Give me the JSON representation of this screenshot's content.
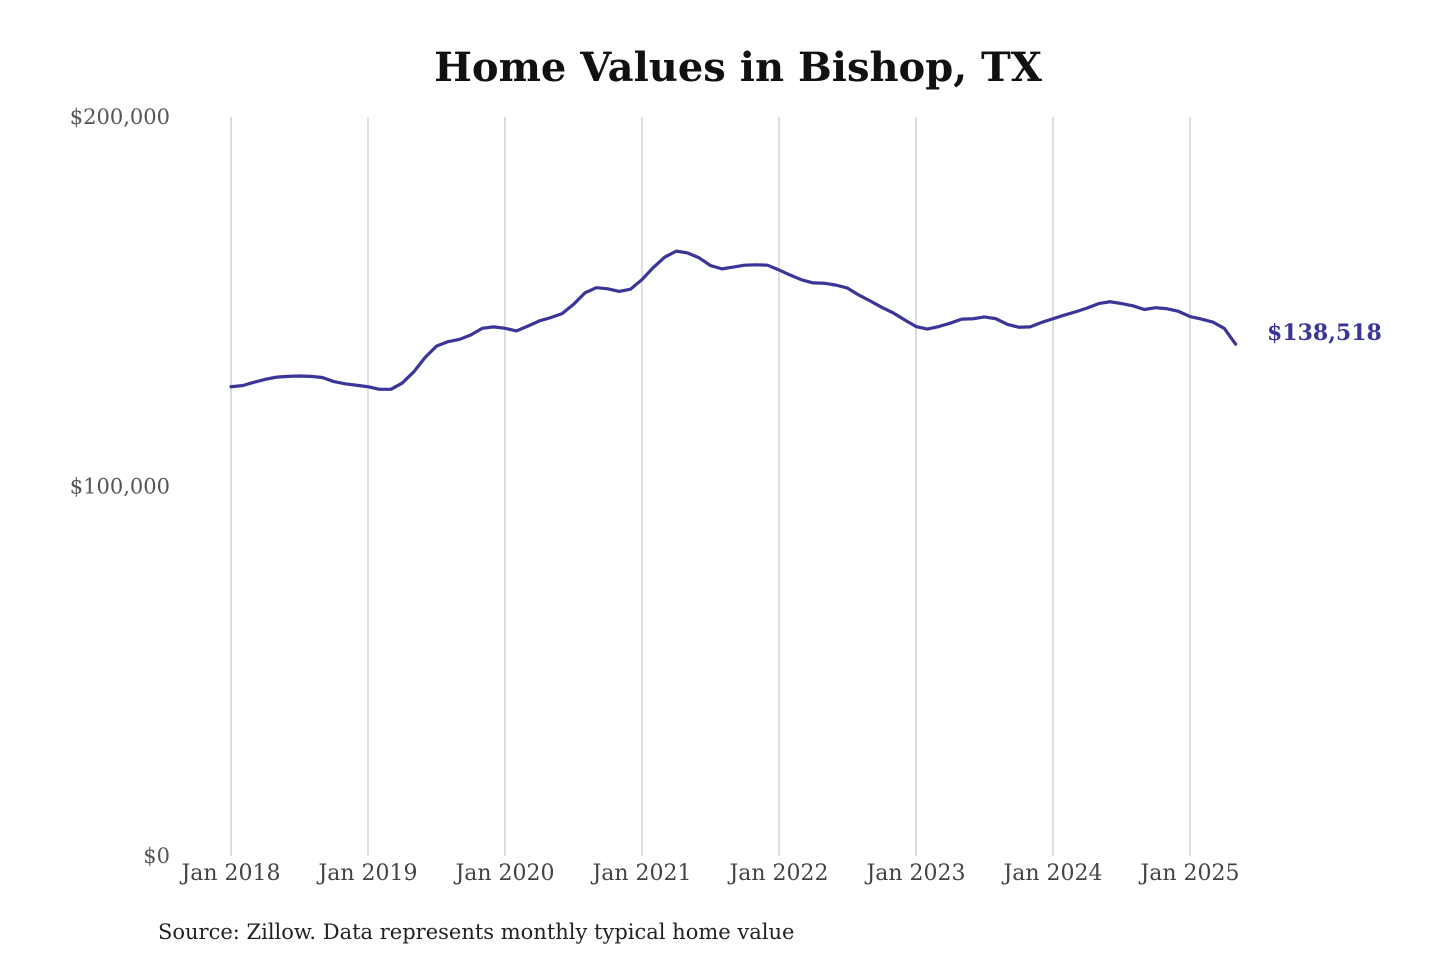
{
  "colors": {
    "line": "#3a3596",
    "grid": "#c8c8c8",
    "title": "#111111",
    "tick_text": "#555555",
    "background": "#ffffff"
  },
  "chart_data": {
    "type": "line",
    "title": "Home Values in Bishop, TX",
    "xlabel": "",
    "ylabel": "",
    "ylim": [
      0,
      200000
    ],
    "grid": "vertical-at-x-ticks",
    "y_ticks": [
      {
        "value": 0,
        "label": "$0"
      },
      {
        "value": 100000,
        "label": "$100,000"
      },
      {
        "value": 200000,
        "label": "$200,000"
      }
    ],
    "x_ticks": [
      {
        "date": "2018-01",
        "label": "Jan 2018"
      },
      {
        "date": "2019-01",
        "label": "Jan 2019"
      },
      {
        "date": "2020-01",
        "label": "Jan 2020"
      },
      {
        "date": "2021-01",
        "label": "Jan 2021"
      },
      {
        "date": "2022-01",
        "label": "Jan 2022"
      },
      {
        "date": "2023-01",
        "label": "Jan 2023"
      },
      {
        "date": "2024-01",
        "label": "Jan 2024"
      },
      {
        "date": "2025-01",
        "label": "Jan 2025"
      }
    ],
    "series": [
      {
        "x": [
          "2018-01",
          "2018-02",
          "2018-03",
          "2018-04",
          "2018-05",
          "2018-06",
          "2018-07",
          "2018-08",
          "2018-09",
          "2018-10",
          "2018-11",
          "2018-12",
          "2019-01",
          "2019-02",
          "2019-03",
          "2019-04",
          "2019-05",
          "2019-06",
          "2019-07",
          "2019-08",
          "2019-09",
          "2019-10",
          "2019-11",
          "2019-12",
          "2020-01",
          "2020-02",
          "2020-03",
          "2020-04",
          "2020-05",
          "2020-06",
          "2020-07",
          "2020-08",
          "2020-09",
          "2020-10",
          "2020-11",
          "2020-12",
          "2021-01",
          "2021-02",
          "2021-03",
          "2021-04",
          "2021-05",
          "2021-06",
          "2021-07",
          "2021-08",
          "2021-09",
          "2021-10",
          "2021-11",
          "2021-12",
          "2022-01",
          "2022-02",
          "2022-03",
          "2022-04",
          "2022-05",
          "2022-06",
          "2022-07",
          "2022-08",
          "2022-09",
          "2022-10",
          "2022-11",
          "2022-12",
          "2023-01",
          "2023-02",
          "2023-03",
          "2023-04",
          "2023-05",
          "2023-06",
          "2023-07",
          "2023-08",
          "2023-09",
          "2023-10",
          "2023-11",
          "2023-12",
          "2024-01",
          "2024-02",
          "2024-03",
          "2024-04",
          "2024-05",
          "2024-06",
          "2024-07",
          "2024-08",
          "2024-09",
          "2024-10",
          "2024-11",
          "2024-12",
          "2025-01",
          "2025-02",
          "2025-03",
          "2025-04",
          "2025-05"
        ],
        "values": [
          127000,
          127300,
          128200,
          129000,
          129600,
          129800,
          129900,
          129800,
          129500,
          128400,
          127800,
          127400,
          127000,
          126300,
          126300,
          128000,
          131000,
          134900,
          138000,
          139200,
          139800,
          141000,
          142800,
          143200,
          142800,
          142100,
          143400,
          144800,
          145700,
          146800,
          149300,
          152400,
          153800,
          153500,
          152800,
          153400,
          156000,
          159300,
          162100,
          163700,
          163200,
          161900,
          159800,
          158900,
          159400,
          159900,
          160000,
          159900,
          158600,
          157200,
          155900,
          155100,
          155000,
          154500,
          153700,
          151800,
          150200,
          148500,
          147000,
          145100,
          143300,
          142600,
          143300,
          144200,
          145300,
          145400,
          145900,
          145400,
          143900,
          143100,
          143200,
          144400,
          145400,
          146400,
          147300,
          148300,
          149500,
          150000,
          149500,
          148900,
          147900,
          148400,
          148100,
          147400,
          146000,
          145300,
          144500,
          142800,
          138518
        ]
      }
    ],
    "end_label": "$138,518",
    "source": "Source: Zillow. Data represents monthly typical home value"
  }
}
